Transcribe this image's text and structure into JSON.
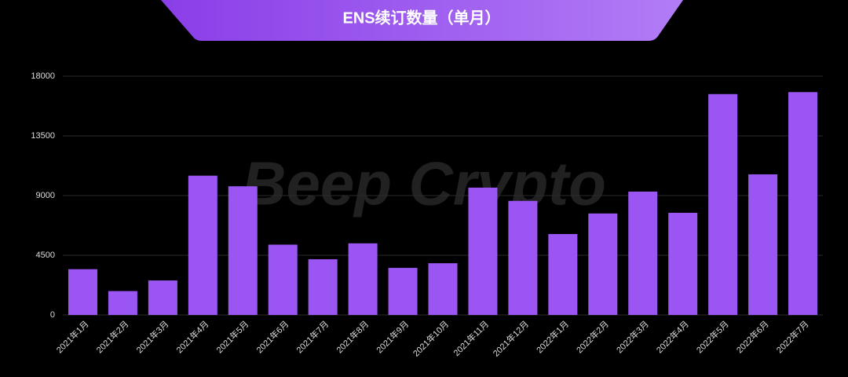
{
  "chart_data": {
    "type": "bar",
    "title": "ENS续订数量（单月）",
    "watermark": "Beep Crypto",
    "categories": [
      "2021年1月",
      "2021年2月",
      "2021年3月",
      "2021年4月",
      "2021年5月",
      "2021年6月",
      "2021年7月",
      "2021年8月",
      "2021年9月",
      "2021年10月",
      "2021年11月",
      "2021年12月",
      "2022年1月",
      "2022年2月",
      "2022年3月",
      "2022年4月",
      "2022年5月",
      "2022年6月",
      "2022年7月"
    ],
    "values": [
      3450,
      1800,
      2600,
      10500,
      9700,
      5300,
      4200,
      5400,
      3550,
      3900,
      9600,
      8600,
      6100,
      7650,
      9300,
      7700,
      16650,
      10600,
      16800
    ],
    "color": "#9b55f2",
    "ylim": [
      0,
      18000
    ],
    "yticks": [
      0,
      4500,
      9000,
      13500,
      18000
    ],
    "grid": true
  }
}
